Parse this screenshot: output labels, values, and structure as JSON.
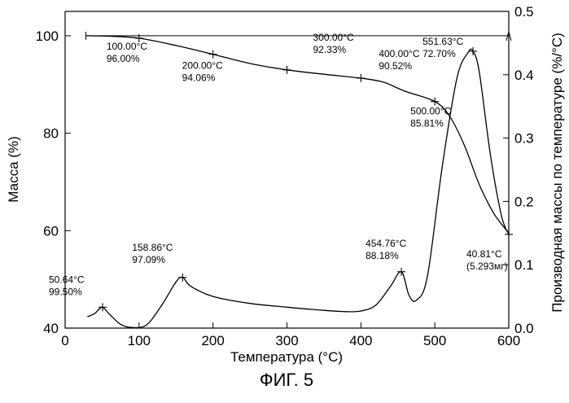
{
  "figure_label": "ФИГ. 5",
  "chart_data": {
    "type": "line",
    "xlabel": "Температура (°C)",
    "ylabel_left": "Масса (%)",
    "ylabel_right": "Производная массы по температуре (%/°C)",
    "xlim": [
      0,
      600
    ],
    "ylim_left": [
      40,
      105
    ],
    "ylim_right": [
      0,
      0.5
    ],
    "x_ticks": [
      "0",
      "100",
      "200",
      "300",
      "400",
      "500",
      "600"
    ],
    "y_left_ticks": [
      "40",
      "60",
      "80",
      "100"
    ],
    "y_right_ticks": [
      "0.0",
      "0.1",
      "0.2",
      "0.3",
      "0.4",
      "0.5"
    ],
    "grid": false,
    "series": [
      {
        "axis": "left",
        "x": [
          28,
          60,
          100,
          150,
          200,
          250,
          300,
          350,
          400,
          430,
          460,
          500,
          520,
          540,
          560,
          580,
          600
        ],
        "values": [
          100,
          99.9,
          99.5,
          98.0,
          96.2,
          94.3,
          93.0,
          92.1,
          91.3,
          90.5,
          88.6,
          86.5,
          83.5,
          77.5,
          69.5,
          63.5,
          59.5
        ]
      },
      {
        "axis": "right",
        "x": [
          30,
          40,
          50,
          60,
          75,
          90,
          110,
          130,
          150,
          159,
          170,
          200,
          250,
          300,
          350,
          380,
          400,
          420,
          440,
          454.76,
          465,
          475,
          490,
          510,
          530,
          545,
          551.63,
          560,
          575,
          590,
          600
        ],
        "values": [
          0.018,
          0.023,
          0.033,
          0.022,
          0.006,
          0.001,
          0.005,
          0.035,
          0.073,
          0.08,
          0.066,
          0.05,
          0.039,
          0.033,
          0.028,
          0.026,
          0.027,
          0.036,
          0.066,
          0.089,
          0.052,
          0.044,
          0.082,
          0.255,
          0.395,
          0.435,
          0.437,
          0.405,
          0.275,
          0.178,
          0.148
        ]
      }
    ],
    "annotations": [
      {
        "axis": "left",
        "x": 100,
        "y": 99.5,
        "lines": [
          "100.00°C",
          "96.00%"
        ]
      },
      {
        "axis": "left",
        "x": 200,
        "y": 96.2,
        "lines": [
          "200.00°C",
          "94.06%"
        ]
      },
      {
        "axis": "left",
        "x": 300,
        "y": 93.0,
        "lines": [
          "300.00°C",
          "92.33%"
        ]
      },
      {
        "axis": "left",
        "x": 400,
        "y": 91.3,
        "lines": [
          "400.00°C",
          "90.52%"
        ]
      },
      {
        "axis": "left",
        "x": 500,
        "y": 86.5,
        "lines": [
          "500.00°C",
          "85.81%"
        ]
      },
      {
        "axis": "right",
        "x": 551.63,
        "y": 0.437,
        "lines": [
          "551.63°C",
          "72.70%"
        ]
      },
      {
        "axis": "right",
        "x": 600,
        "y": 0.148,
        "lines": [
          "40.81°C",
          "(5.293мг)"
        ]
      },
      {
        "axis": "right",
        "x": 50.64,
        "y": 0.033,
        "lines": [
          "50.64°C",
          "99.50%"
        ]
      },
      {
        "axis": "right",
        "x": 158.86,
        "y": 0.08,
        "lines": [
          "158.86°C",
          "97.09%"
        ]
      },
      {
        "axis": "right",
        "x": 454.76,
        "y": 0.089,
        "lines": [
          "454.76°C",
          "88.18%"
        ]
      }
    ]
  }
}
